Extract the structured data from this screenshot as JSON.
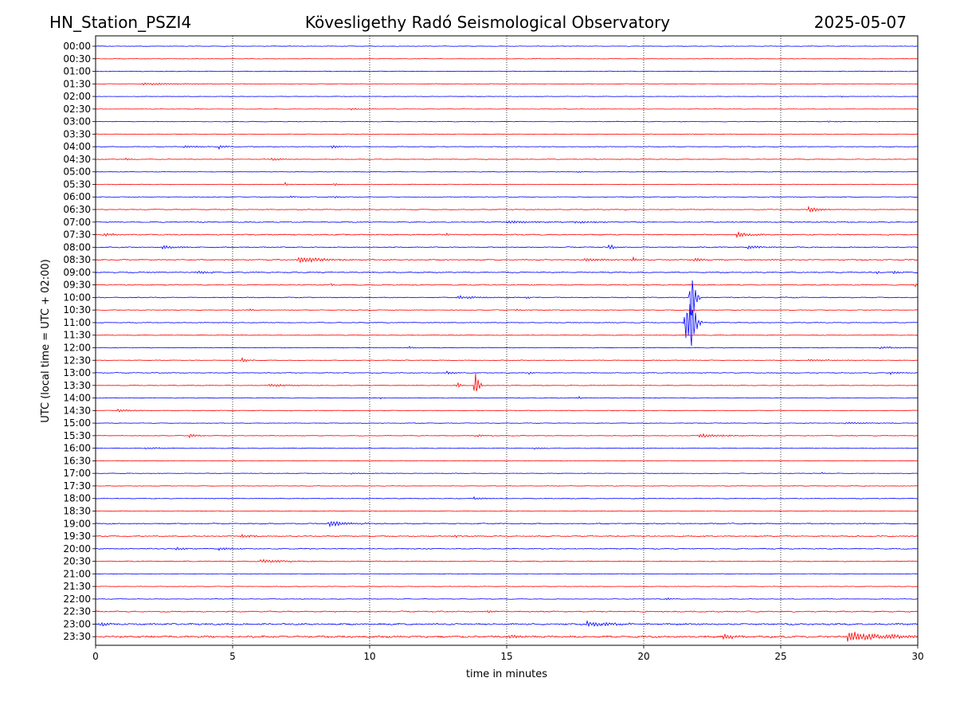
{
  "header": {
    "station": "HN_Station_PSZI4",
    "observatory": "Kövesligethy Radó Seismological Observatory",
    "date": "2025-05-07"
  },
  "chart_data": {
    "type": "line",
    "title": "Kövesligethy Radó Seismological Observatory",
    "xlabel": "time in minutes",
    "ylabel": "UTC (local time = UTC + 02:00)",
    "xlim": [
      0,
      30
    ],
    "x_ticks": [
      0,
      5,
      10,
      15,
      20,
      25,
      30
    ],
    "x_tick_labels": [
      "0",
      "5",
      "10",
      "15",
      "20",
      "25",
      "30"
    ],
    "grid": "vertical-dotted",
    "colors": {
      "even": "#0000ff",
      "odd": "#ff0000"
    },
    "rows": [
      {
        "label": "00:00",
        "noise": 0.25,
        "events": []
      },
      {
        "label": "00:30",
        "noise": 0.2,
        "events": []
      },
      {
        "label": "01:00",
        "noise": 0.3,
        "events": []
      },
      {
        "label": "01:30",
        "noise": 0.25,
        "events": [
          {
            "t": 1.7,
            "amp": 1.5,
            "dur": 1.5
          }
        ]
      },
      {
        "label": "02:00",
        "noise": 0.2,
        "events": [
          {
            "t": 27.2,
            "amp": 0.8,
            "dur": 0.3
          }
        ]
      },
      {
        "label": "02:30",
        "noise": 0.2,
        "events": [
          {
            "t": 9.3,
            "amp": 1.2,
            "dur": 0.6
          }
        ]
      },
      {
        "label": "03:00",
        "noise": 0.3,
        "events": [
          {
            "t": 26.7,
            "amp": 0.8,
            "dur": 0.3
          }
        ]
      },
      {
        "label": "03:30",
        "noise": 0.25,
        "events": []
      },
      {
        "label": "04:00",
        "noise": 0.3,
        "events": [
          {
            "t": 3.2,
            "amp": 2,
            "dur": 0.5
          },
          {
            "t": 4.5,
            "amp": 3,
            "dur": 0.2
          },
          {
            "t": 8.6,
            "amp": 2.5,
            "dur": 0.3
          }
        ]
      },
      {
        "label": "04:30",
        "noise": 0.3,
        "events": [
          {
            "t": 1.1,
            "amp": 1.5,
            "dur": 0.2
          },
          {
            "t": 6.4,
            "amp": 2,
            "dur": 0.4
          }
        ]
      },
      {
        "label": "05:00",
        "noise": 0.25,
        "events": [
          {
            "t": 17.6,
            "amp": 2,
            "dur": 0.1
          }
        ]
      },
      {
        "label": "05:30",
        "noise": 0.25,
        "events": [
          {
            "t": 6.9,
            "amp": 3,
            "dur": 0.1
          },
          {
            "t": 8.7,
            "amp": 3,
            "dur": 0.1
          }
        ]
      },
      {
        "label": "06:00",
        "noise": 0.3,
        "events": [
          {
            "t": 7.1,
            "amp": 2.5,
            "dur": 0.1
          },
          {
            "t": 8.7,
            "amp": 2.5,
            "dur": 0.1
          }
        ]
      },
      {
        "label": "06:30",
        "noise": 0.35,
        "events": [
          {
            "t": 26.0,
            "amp": 4,
            "dur": 0.4
          }
        ]
      },
      {
        "label": "07:00",
        "noise": 0.45,
        "events": [
          {
            "t": 15.0,
            "amp": 2,
            "dur": 1
          },
          {
            "t": 17.5,
            "amp": 1.5,
            "dur": 1
          }
        ]
      },
      {
        "label": "07:30",
        "noise": 0.5,
        "events": [
          {
            "t": 0.3,
            "amp": 2,
            "dur": 0.4
          },
          {
            "t": 23.4,
            "amp": 4.5,
            "dur": 0.5
          },
          {
            "t": 12.8,
            "amp": 2,
            "dur": 0.1
          }
        ]
      },
      {
        "label": "08:00",
        "noise": 0.45,
        "events": [
          {
            "t": 2.4,
            "amp": 3,
            "dur": 0.5
          },
          {
            "t": 18.7,
            "amp": 5,
            "dur": 0.2
          },
          {
            "t": 23.8,
            "amp": 2.5,
            "dur": 0.5
          }
        ]
      },
      {
        "label": "08:30",
        "noise": 0.5,
        "events": [
          {
            "t": 7.4,
            "amp": 4,
            "dur": 1
          },
          {
            "t": 17.8,
            "amp": 2.5,
            "dur": 0.8
          },
          {
            "t": 19.6,
            "amp": 4,
            "dur": 0.1
          },
          {
            "t": 21.8,
            "amp": 3,
            "dur": 0.3
          }
        ]
      },
      {
        "label": "09:00",
        "noise": 0.5,
        "events": [
          {
            "t": 3.7,
            "amp": 2.5,
            "dur": 0.4
          },
          {
            "t": 28.5,
            "amp": 3,
            "dur": 0.1
          },
          {
            "t": 29.1,
            "amp": 3,
            "dur": 0.2
          }
        ]
      },
      {
        "label": "09:30",
        "noise": 0.45,
        "events": [
          {
            "t": 8.6,
            "amp": 2.5,
            "dur": 0.1
          },
          {
            "t": 29.9,
            "amp": 3,
            "dur": 0.2
          }
        ]
      },
      {
        "label": "10:00",
        "noise": 0.4,
        "events": [
          {
            "t": 13.2,
            "amp": 2,
            "dur": 1
          },
          {
            "t": 15.7,
            "amp": 2,
            "dur": 0.2
          },
          {
            "t": 21.7,
            "amp": 45,
            "dur": 0.15
          }
        ]
      },
      {
        "label": "10:30",
        "noise": 0.3,
        "events": [
          {
            "t": 5.6,
            "amp": 2,
            "dur": 0.2
          },
          {
            "t": 15.3,
            "amp": 1.5,
            "dur": 0.3
          }
        ]
      },
      {
        "label": "11:00",
        "noise": 0.35,
        "events": [
          {
            "t": 21.5,
            "amp": 35,
            "dur": 0.25
          },
          {
            "t": 21.7,
            "amp": 55,
            "dur": 0.1
          }
        ]
      },
      {
        "label": "11:30",
        "noise": 0.3,
        "events": []
      },
      {
        "label": "12:00",
        "noise": 0.3,
        "events": [
          {
            "t": 11.4,
            "amp": 2,
            "dur": 0.2
          },
          {
            "t": 28.6,
            "amp": 1.5,
            "dur": 0.8
          }
        ]
      },
      {
        "label": "12:30",
        "noise": 0.3,
        "events": [
          {
            "t": 5.3,
            "amp": 4,
            "dur": 0.2
          },
          {
            "t": 26.0,
            "amp": 1.5,
            "dur": 0.8
          }
        ]
      },
      {
        "label": "13:00",
        "noise": 0.35,
        "events": [
          {
            "t": 12.8,
            "amp": 2,
            "dur": 0.3
          },
          {
            "t": 15.8,
            "amp": 2.5,
            "dur": 0.1
          },
          {
            "t": 29.0,
            "amp": 2,
            "dur": 0.3
          }
        ]
      },
      {
        "label": "13:30",
        "noise": 0.3,
        "events": [
          {
            "t": 6.3,
            "amp": 2,
            "dur": 0.8
          },
          {
            "t": 13.2,
            "amp": 5,
            "dur": 0.1
          },
          {
            "t": 13.85,
            "amp": 25,
            "dur": 0.1
          }
        ]
      },
      {
        "label": "14:00",
        "noise": 0.3,
        "events": [
          {
            "t": 10.4,
            "amp": 1.5,
            "dur": 0.1
          },
          {
            "t": 17.6,
            "amp": 3,
            "dur": 0.1
          }
        ]
      },
      {
        "label": "14:30",
        "noise": 0.3,
        "events": [
          {
            "t": 0.8,
            "amp": 2.5,
            "dur": 0.4
          }
        ]
      },
      {
        "label": "15:00",
        "noise": 0.25,
        "events": [
          {
            "t": 27.3,
            "amp": 1.2,
            "dur": 1.2
          }
        ]
      },
      {
        "label": "15:30",
        "noise": 0.3,
        "events": [
          {
            "t": 3.4,
            "amp": 3,
            "dur": 0.3
          },
          {
            "t": 13.9,
            "amp": 2,
            "dur": 0.3
          },
          {
            "t": 22.0,
            "amp": 2.5,
            "dur": 1
          }
        ]
      },
      {
        "label": "16:00",
        "noise": 0.3,
        "events": [
          {
            "t": 1.8,
            "amp": 1.5,
            "dur": 0.5
          },
          {
            "t": 16.0,
            "amp": 1.2,
            "dur": 0.5
          }
        ]
      },
      {
        "label": "16:30",
        "noise": 0.25,
        "events": [
          {
            "t": 5.0,
            "amp": 2,
            "dur": 0.1
          }
        ]
      },
      {
        "label": "17:00",
        "noise": 0.25,
        "events": [
          {
            "t": 9.3,
            "amp": 1.2,
            "dur": 0.4
          },
          {
            "t": 26.5,
            "amp": 1.5,
            "dur": 0.1
          }
        ]
      },
      {
        "label": "17:30",
        "noise": 0.25,
        "events": []
      },
      {
        "label": "18:00",
        "noise": 0.35,
        "events": [
          {
            "t": 13.8,
            "amp": 2,
            "dur": 0.4
          }
        ]
      },
      {
        "label": "18:30",
        "noise": 0.3,
        "events": []
      },
      {
        "label": "19:00",
        "noise": 0.5,
        "events": [
          {
            "t": 8.5,
            "amp": 4,
            "dur": 0.8
          }
        ]
      },
      {
        "label": "19:30",
        "noise": 0.5,
        "events": [
          {
            "t": 5.3,
            "amp": 2.5,
            "dur": 0.4
          },
          {
            "t": 13.1,
            "amp": 2,
            "dur": 0.2
          }
        ]
      },
      {
        "label": "20:00",
        "noise": 0.45,
        "events": [
          {
            "t": 2.9,
            "amp": 3,
            "dur": 0.3
          },
          {
            "t": 4.5,
            "amp": 2,
            "dur": 0.5
          }
        ]
      },
      {
        "label": "20:30",
        "noise": 0.4,
        "events": [
          {
            "t": 6.0,
            "amp": 2.5,
            "dur": 1
          }
        ]
      },
      {
        "label": "21:00",
        "noise": 0.25,
        "events": []
      },
      {
        "label": "21:30",
        "noise": 0.25,
        "events": []
      },
      {
        "label": "22:00",
        "noise": 0.3,
        "events": [
          {
            "t": 20.8,
            "amp": 2,
            "dur": 0.3
          }
        ]
      },
      {
        "label": "22:30",
        "noise": 0.55,
        "events": [
          {
            "t": 14.3,
            "amp": 2,
            "dur": 0.3
          }
        ]
      },
      {
        "label": "23:00",
        "noise": 0.75,
        "events": [
          {
            "t": 0.2,
            "amp": 3,
            "dur": 0.3
          },
          {
            "t": 17.9,
            "amp": 4,
            "dur": 0.5
          },
          {
            "t": 18.5,
            "amp": 3.5,
            "dur": 0.5
          }
        ]
      },
      {
        "label": "23:30",
        "noise": 0.9,
        "events": [
          {
            "t": 15.1,
            "amp": 4,
            "dur": 0.3
          },
          {
            "t": 22.9,
            "amp": 4,
            "dur": 0.5
          },
          {
            "t": 27.4,
            "amp": 6,
            "dur": 1.8
          }
        ]
      }
    ]
  }
}
